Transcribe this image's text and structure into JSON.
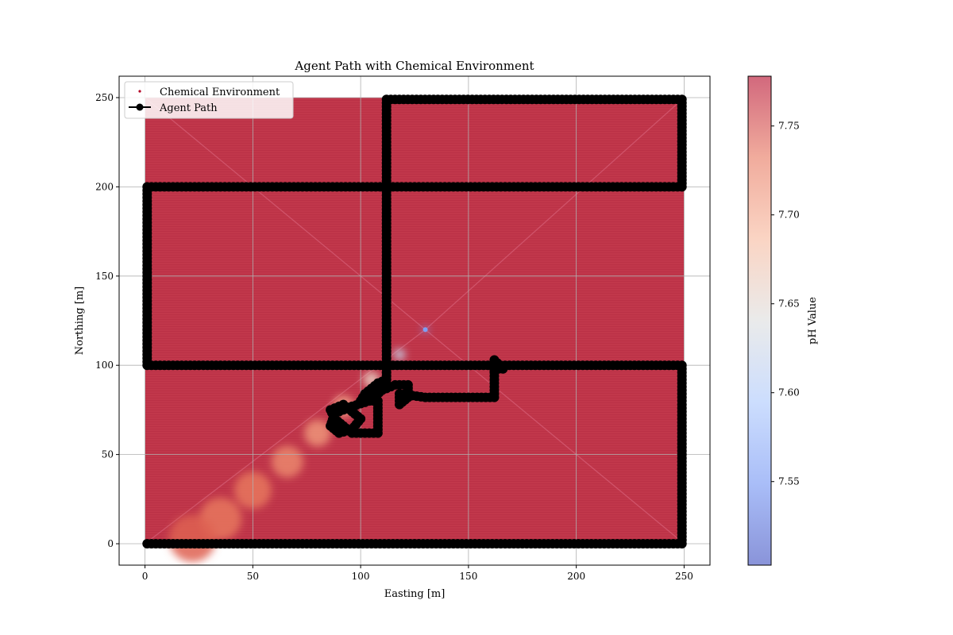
{
  "chart_data": {
    "type": "scatter",
    "title": "Agent Path with Chemical Environment",
    "xlabel": "Easting [m]",
    "ylabel": "Northing [m]",
    "xlim": [
      -12,
      262
    ],
    "ylim": [
      -12,
      262
    ],
    "x_ticks": [
      0,
      50,
      100,
      150,
      200,
      250
    ],
    "y_ticks": [
      0,
      50,
      100,
      150,
      200,
      250
    ],
    "x_tick_labels": [
      "0",
      "50",
      "100",
      "150",
      "200",
      "250"
    ],
    "y_tick_labels": [
      "0",
      "50",
      "100",
      "150",
      "200",
      "250"
    ],
    "grid": true,
    "legend_position": "upper-left",
    "legend": [
      "Chemical Environment",
      "Agent Path"
    ],
    "series": [
      {
        "name": "Chemical Environment",
        "kind": "field",
        "extent": {
          "x": [
            0,
            250
          ],
          "y": [
            0,
            250
          ]
        },
        "background_ph": 7.775,
        "plume": {
          "source": [
            130,
            120
          ],
          "points": [
            [
              130,
              120
            ],
            [
              118,
              106
            ],
            [
              105,
              92
            ],
            [
              92,
              77
            ],
            [
              80,
              62
            ],
            [
              66,
              46
            ],
            [
              50,
              30
            ],
            [
              35,
              14
            ],
            [
              22,
              3
            ]
          ],
          "ph": [
            7.56,
            7.62,
            7.66,
            7.7,
            7.71,
            7.72,
            7.73,
            7.73,
            7.74
          ]
        }
      },
      {
        "name": "Agent Path",
        "kind": "line-marker",
        "color": "#000000",
        "points": [
          [
            1,
            0
          ],
          [
            249,
            0
          ],
          [
            249,
            100
          ],
          [
            1,
            100
          ],
          [
            1,
            200
          ],
          [
            249,
            200
          ],
          [
            249,
            249
          ],
          [
            112,
            249
          ],
          [
            112,
            92
          ],
          [
            108,
            90
          ],
          [
            105,
            87
          ],
          [
            102,
            84
          ],
          [
            100,
            80
          ],
          [
            108,
            80
          ],
          [
            108,
            62
          ],
          [
            96,
            62
          ],
          [
            92,
            66
          ],
          [
            88,
            70
          ],
          [
            86,
            75
          ],
          [
            92,
            78
          ],
          [
            96,
            74
          ],
          [
            100,
            70
          ],
          [
            96,
            64
          ],
          [
            90,
            62
          ],
          [
            86,
            66
          ],
          [
            88,
            73
          ],
          [
            96,
            77
          ],
          [
            104,
            80
          ],
          [
            110,
            86
          ],
          [
            116,
            89
          ],
          [
            122,
            89
          ],
          [
            122,
            82
          ],
          [
            118,
            78
          ],
          [
            118,
            84
          ],
          [
            130,
            82
          ],
          [
            162,
            82
          ],
          [
            162,
            98
          ],
          [
            166,
            98
          ],
          [
            162,
            103
          ],
          [
            162,
            97
          ]
        ]
      }
    ],
    "colorbar": {
      "label": "pH Value",
      "range": [
        7.503,
        7.778
      ],
      "ticks": [
        7.55,
        7.6,
        7.65,
        7.7,
        7.75
      ],
      "tick_labels": [
        "7.55",
        "7.60",
        "7.65",
        "7.70",
        "7.75"
      ],
      "colormap": "coolwarm",
      "stops": [
        "#3b4cc0",
        "#7092f3",
        "#aac7fd",
        "#dcdddd",
        "#f7b89c",
        "#e7745b",
        "#b40426"
      ]
    }
  }
}
